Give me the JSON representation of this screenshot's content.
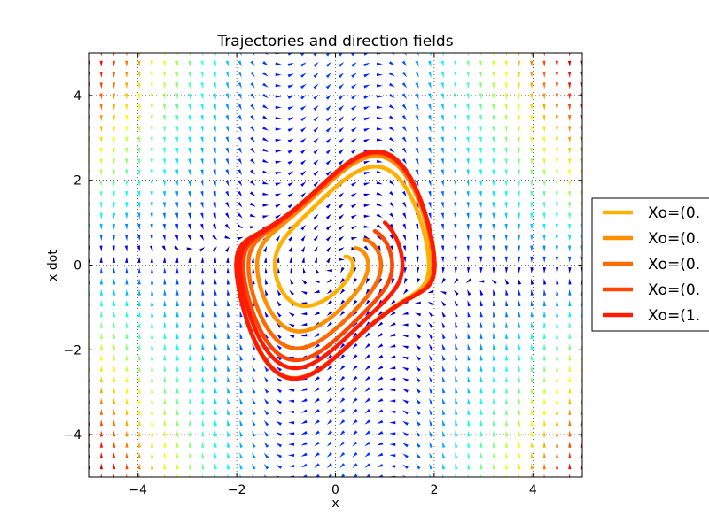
{
  "chart_data": {
    "type": "line",
    "title": "Trajectories and direction fields",
    "xlabel": "x",
    "ylabel": "x dot",
    "xlim": [
      -5,
      5
    ],
    "ylim": [
      -5,
      5
    ],
    "xticks": [
      -4,
      -2,
      0,
      2,
      4
    ],
    "yticks": [
      -4,
      -2,
      0,
      2,
      4
    ],
    "xtick_labels": [
      "−4",
      "−2",
      "0",
      "2",
      "4"
    ],
    "ytick_labels": [
      "−4",
      "−2",
      "0",
      "2",
      "4"
    ],
    "grid": true,
    "legend_position": "right (outside plot, clipped)",
    "quiver": {
      "description": "direction field of the van der Pol oscillator, mu = 1, arrows coloured by magnitude (jet colormap)",
      "x_range": [
        -5,
        5
      ],
      "y_range": [
        -5,
        5
      ],
      "grid_count": 40,
      "mu": 1
    },
    "series": [
      {
        "name": "Xo=(0.",
        "color": "#ffb000",
        "x0": [
          0.2,
          0.2
        ]
      },
      {
        "name": "Xo=(0.",
        "color": "#ff8f00",
        "x0": [
          0.4,
          0.4
        ]
      },
      {
        "name": "Xo=(0.",
        "color": "#ff6a00",
        "x0": [
          0.6,
          0.6
        ]
      },
      {
        "name": "Xo=(0.",
        "color": "#ff4500",
        "x0": [
          0.8,
          0.8
        ]
      },
      {
        "name": "Xo=(1.",
        "color": "#ff1a00",
        "x0": [
          1.0,
          1.0
        ]
      }
    ]
  }
}
